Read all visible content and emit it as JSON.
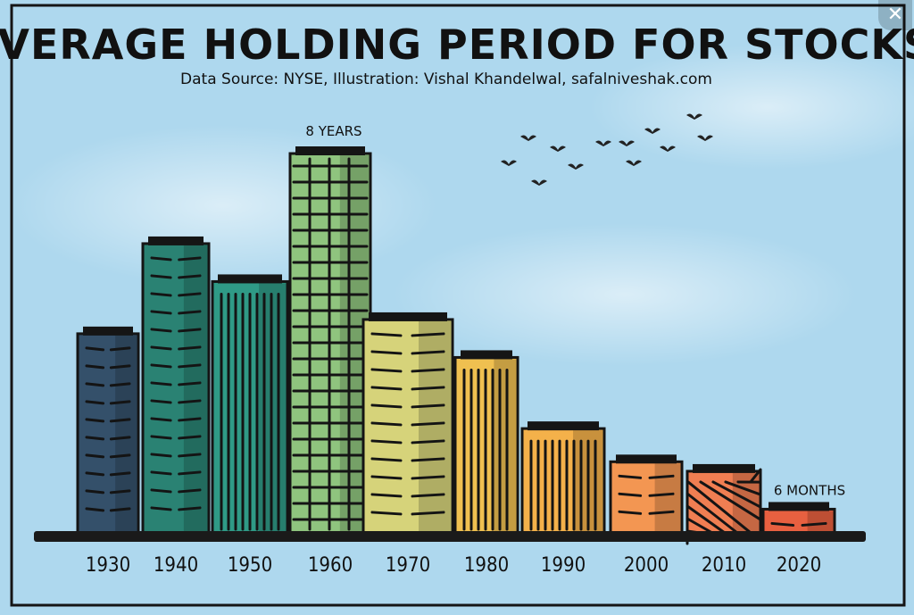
{
  "close_icon_label": "✕",
  "chart_data": {
    "type": "bar",
    "title": "AVERAGE HOLDING PERIOD FOR STOCKS",
    "subtitle": "Data Source: NYSE, Illustration: Vishal Khandelwal, safalniveshak.com",
    "categories": [
      "1930",
      "1940",
      "1950",
      "1960",
      "1970",
      "1980",
      "1990",
      "2000",
      "2010",
      "2020"
    ],
    "values": [
      4.2,
      6.1,
      5.3,
      8,
      4.5,
      3.7,
      2.2,
      1.5,
      1.3,
      0.5
    ],
    "unit": "years",
    "ylim": [
      0,
      8.5
    ],
    "annotations": [
      {
        "category": "1960",
        "text": "8 YEARS"
      },
      {
        "category": "2020",
        "text": "6 MONTHS"
      }
    ],
    "colors": [
      "#34506a",
      "#2a8273",
      "#2f9a86",
      "#8fc47e",
      "#d6d37a",
      "#efc050",
      "#f4b14a",
      "#f39652",
      "#f07e52",
      "#e86040"
    ],
    "background": "#aed8ee"
  }
}
